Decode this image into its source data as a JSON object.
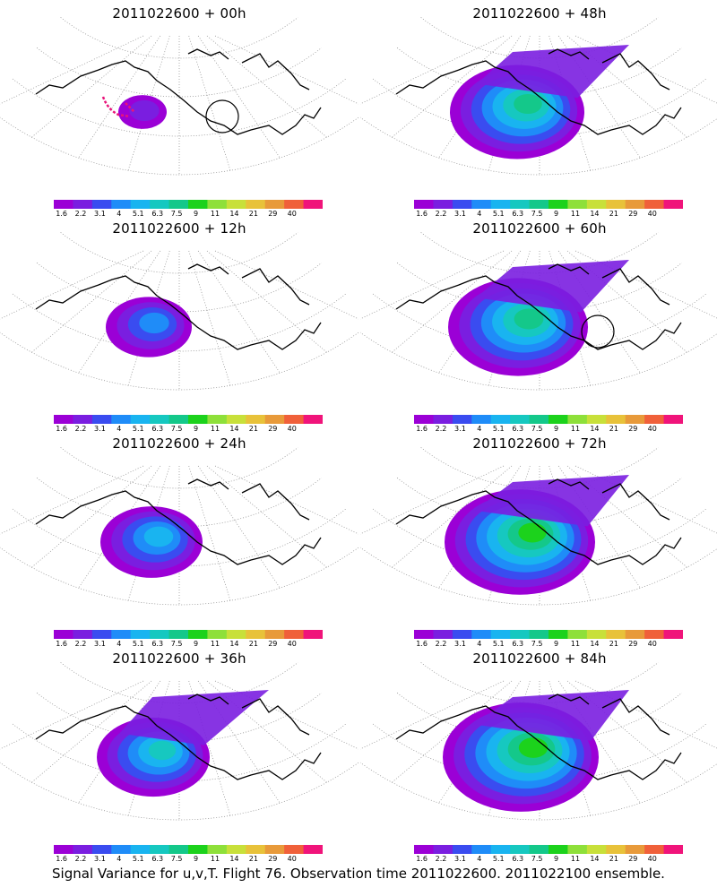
{
  "panels": [
    {
      "title": "2011022600 + 00h",
      "spread": 0.45,
      "intensity": 1,
      "obs": true,
      "circle": true
    },
    {
      "title": "2011022600 + 48h",
      "spread": 1.25,
      "intensity": 6,
      "obs": false,
      "circle": false
    },
    {
      "title": "2011022600 + 12h",
      "spread": 0.8,
      "intensity": 3,
      "obs": false,
      "circle": false
    },
    {
      "title": "2011022600 + 60h",
      "spread": 1.3,
      "intensity": 6,
      "obs": false,
      "circle": true
    },
    {
      "title": "2011022600 + 24h",
      "spread": 0.95,
      "intensity": 4,
      "obs": false,
      "circle": false
    },
    {
      "title": "2011022600 + 72h",
      "spread": 1.4,
      "intensity": 7,
      "obs": false,
      "circle": false
    },
    {
      "title": "2011022600 + 36h",
      "spread": 1.05,
      "intensity": 5,
      "obs": false,
      "circle": false
    },
    {
      "title": "2011022600 + 84h",
      "spread": 1.45,
      "intensity": 7,
      "obs": false,
      "circle": false
    }
  ],
  "colorbar": {
    "labels": [
      "1.6",
      "2.2",
      "3.1",
      "4",
      "5.1",
      "6.3",
      "7.5",
      "9",
      "11",
      "14",
      "21",
      "29",
      "40"
    ],
    "colors": [
      "#9b00d6",
      "#7a1ee0",
      "#3a4cf0",
      "#1f8cf8",
      "#19b4f0",
      "#16c8c0",
      "#14c88a",
      "#1cd21c",
      "#8ee03a",
      "#c8e03a",
      "#e8c23a",
      "#e89a3a",
      "#f0603a",
      "#f0147a"
    ]
  },
  "footer": "Signal Variance for u,v,T. Flight 76. Observation time 2011022600. 2011022100 ensemble."
}
